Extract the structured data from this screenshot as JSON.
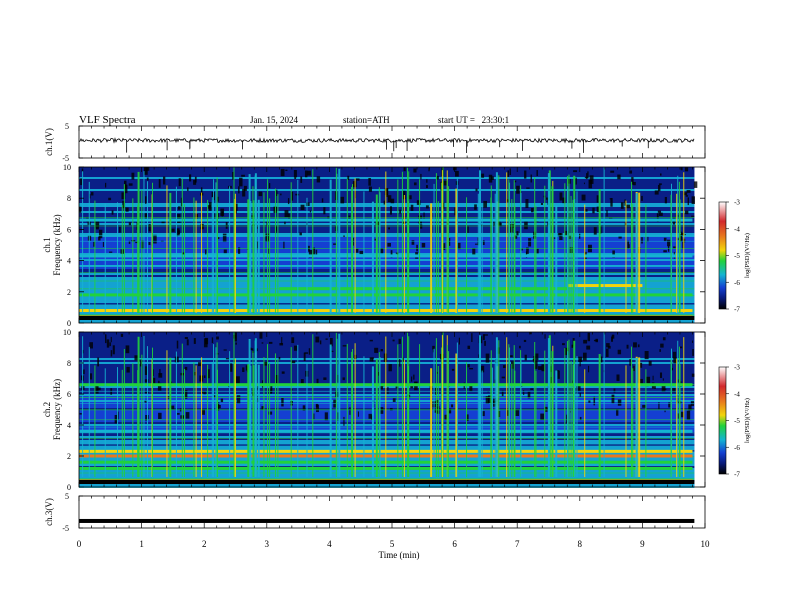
{
  "header": {
    "title": "VLF Spectra",
    "date": "Jan. 15, 2024",
    "station": "station=ATH",
    "start_ut": "start UT =   23:30:1"
  },
  "colors": {
    "colormap": [
      "#ffffff",
      "#d2282d",
      "#e8781e",
      "#f2d50a",
      "#21d23c",
      "#14b4d2",
      "#1440d2",
      "#081a7a",
      "#000000"
    ],
    "ch1_trace": "#000000",
    "ch3_trace": "#000000"
  },
  "chart_data": [
    {
      "type": "line",
      "name": "ch.1(V)",
      "ylabel": "ch.1(V)",
      "yticks": [
        "5",
        "-5"
      ],
      "ylim": [
        -5,
        5
      ],
      "xlim": [
        0,
        9.83
      ],
      "mean_level": 0.5,
      "noise_amplitude": 0.6,
      "spike_min": -3.5
    },
    {
      "type": "heatmap",
      "name": "ch.1 spectrogram",
      "ylabel": "ch.1\nFrequency (kHz)",
      "ylabel_lines": [
        "ch.1",
        "Frequency (kHz)"
      ],
      "yticks": [
        "0",
        "2",
        "4",
        "6",
        "8",
        "10"
      ],
      "ylim": [
        0,
        10
      ],
      "xlim": [
        0,
        9.83
      ],
      "bands": [
        {
          "freq": 2.2,
          "level": -4.8,
          "from": 3.2,
          "to": 7.8
        },
        {
          "freq": 1.8,
          "level": -5.2,
          "from": 0.0,
          "to": 9.8
        },
        {
          "freq": 0.8,
          "level": -4.5,
          "from": 0.0,
          "to": 9.8
        },
        {
          "freq": 0.4,
          "level": -4.0,
          "from": 0.0,
          "to": 9.8
        },
        {
          "freq": 6.6,
          "level": -5.3,
          "from": 0.0,
          "to": 9.8
        },
        {
          "freq": 4.3,
          "level": -5.5,
          "from": 0.0,
          "to": 9.8
        },
        {
          "freq": 2.4,
          "level": -4.6,
          "from": 7.8,
          "to": 9.0
        }
      ],
      "colorbar": {
        "label": "log(PSD)(V²/Hz)",
        "ticks": [
          "-3",
          "-4",
          "-5",
          "-6",
          "-7"
        ],
        "range": [
          -7,
          -3
        ]
      }
    },
    {
      "type": "heatmap",
      "name": "ch.2 spectrogram",
      "ylabel": "ch.2\nFrequency (kHz)",
      "ylabel_lines": [
        "ch.2",
        "Frequency (kHz)"
      ],
      "yticks": [
        "0",
        "2",
        "4",
        "6",
        "8",
        "10"
      ],
      "ylim": [
        0,
        10
      ],
      "xlim": [
        0,
        9.83
      ],
      "bands": [
        {
          "freq": 2.0,
          "level": -3.8,
          "from": 0.0,
          "to": 9.8
        },
        {
          "freq": 2.3,
          "level": -4.5,
          "from": 0.0,
          "to": 9.8
        },
        {
          "freq": 1.6,
          "level": -5.0,
          "from": 0.0,
          "to": 9.8
        },
        {
          "freq": 1.2,
          "level": -5.2,
          "from": 0.0,
          "to": 9.8
        },
        {
          "freq": 3.6,
          "level": -5.3,
          "from": 0.0,
          "to": 9.8
        },
        {
          "freq": 6.6,
          "level": -4.8,
          "from": 0.0,
          "to": 9.8
        },
        {
          "freq": 0.4,
          "level": -4.2,
          "from": 0.0,
          "to": 9.8
        }
      ],
      "colorbar": {
        "label": "log(PSD)(V²/Hz)",
        "ticks": [
          "-3",
          "-4",
          "-5",
          "-6",
          "-7"
        ],
        "range": [
          -7,
          -3
        ]
      }
    },
    {
      "type": "line",
      "name": "ch.3(V)",
      "ylabel": "ch.3(V)",
      "yticks": [
        "5",
        "-5"
      ],
      "ylim": [
        -5,
        5
      ],
      "xlim": [
        0,
        9.83
      ],
      "mean_level": -2.8
    }
  ],
  "xaxis": {
    "label": "Time (min)",
    "ticks": [
      "0",
      "1",
      "2",
      "3",
      "4",
      "5",
      "6",
      "7",
      "8",
      "9",
      "10"
    ],
    "range": [
      0,
      10
    ]
  }
}
